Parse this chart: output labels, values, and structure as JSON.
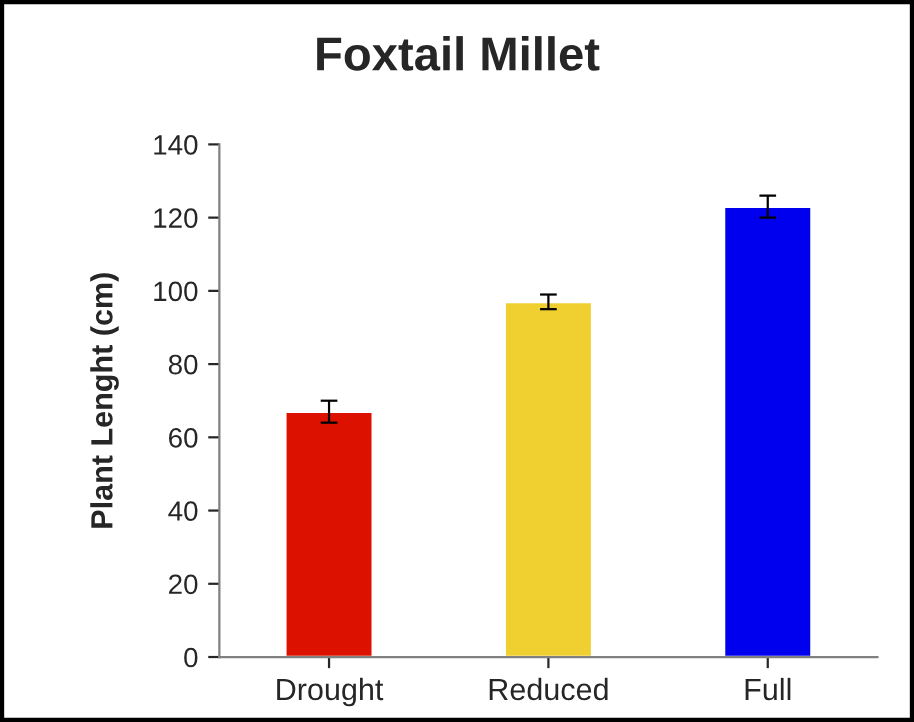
{
  "chart_data": {
    "type": "bar",
    "title": "Foxtail Millet",
    "ylabel": "Plant Lenght (cm)",
    "categories": [
      "Drought",
      "Reduced",
      "Full"
    ],
    "values": [
      67,
      97,
      123
    ],
    "errors": [
      3,
      2,
      3
    ],
    "colors": [
      "#dd1100",
      "#f0d030",
      "#0000ee"
    ],
    "ylim": [
      0,
      140
    ],
    "yticks": [
      0,
      20,
      40,
      60,
      80,
      100,
      120,
      140
    ],
    "grid": false,
    "legend": false
  }
}
